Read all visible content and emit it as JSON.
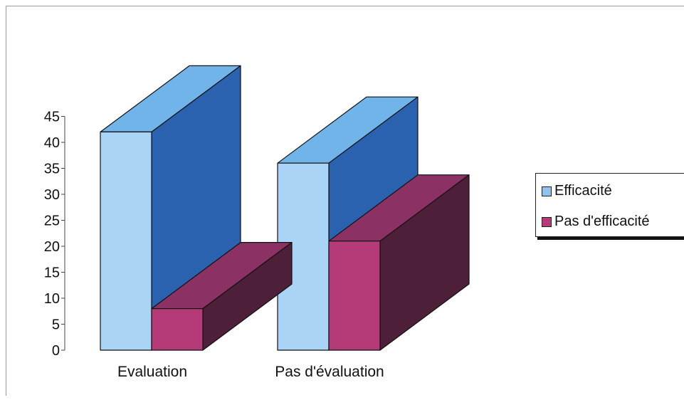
{
  "chart_data": {
    "type": "bar",
    "title": "",
    "xlabel": "",
    "ylabel": "",
    "categories": [
      "Evaluation",
      "Pas d'évaluation"
    ],
    "series": [
      {
        "name": "Efficacité",
        "values": [
          42,
          36
        ]
      },
      {
        "name": "Pas d'efficacité",
        "values": [
          8,
          21
        ]
      }
    ],
    "ylim": [
      0,
      45
    ],
    "yticks": [
      0,
      5,
      10,
      15,
      20,
      25,
      30,
      35,
      40,
      45
    ],
    "grid": false,
    "legend_position": "right",
    "colors": {
      "series_front": [
        "#a9d4f5",
        "#b53a78"
      ],
      "series_top": [
        "#71b4ea",
        "#8b3163"
      ],
      "series_side": [
        "#2b62b0",
        "#4e1f38"
      ]
    }
  },
  "legend": {
    "items": [
      {
        "label": "Efficacité",
        "color": "#8fc2ee"
      },
      {
        "label": "Pas d'efficacité",
        "color": "#b53a78"
      }
    ]
  }
}
